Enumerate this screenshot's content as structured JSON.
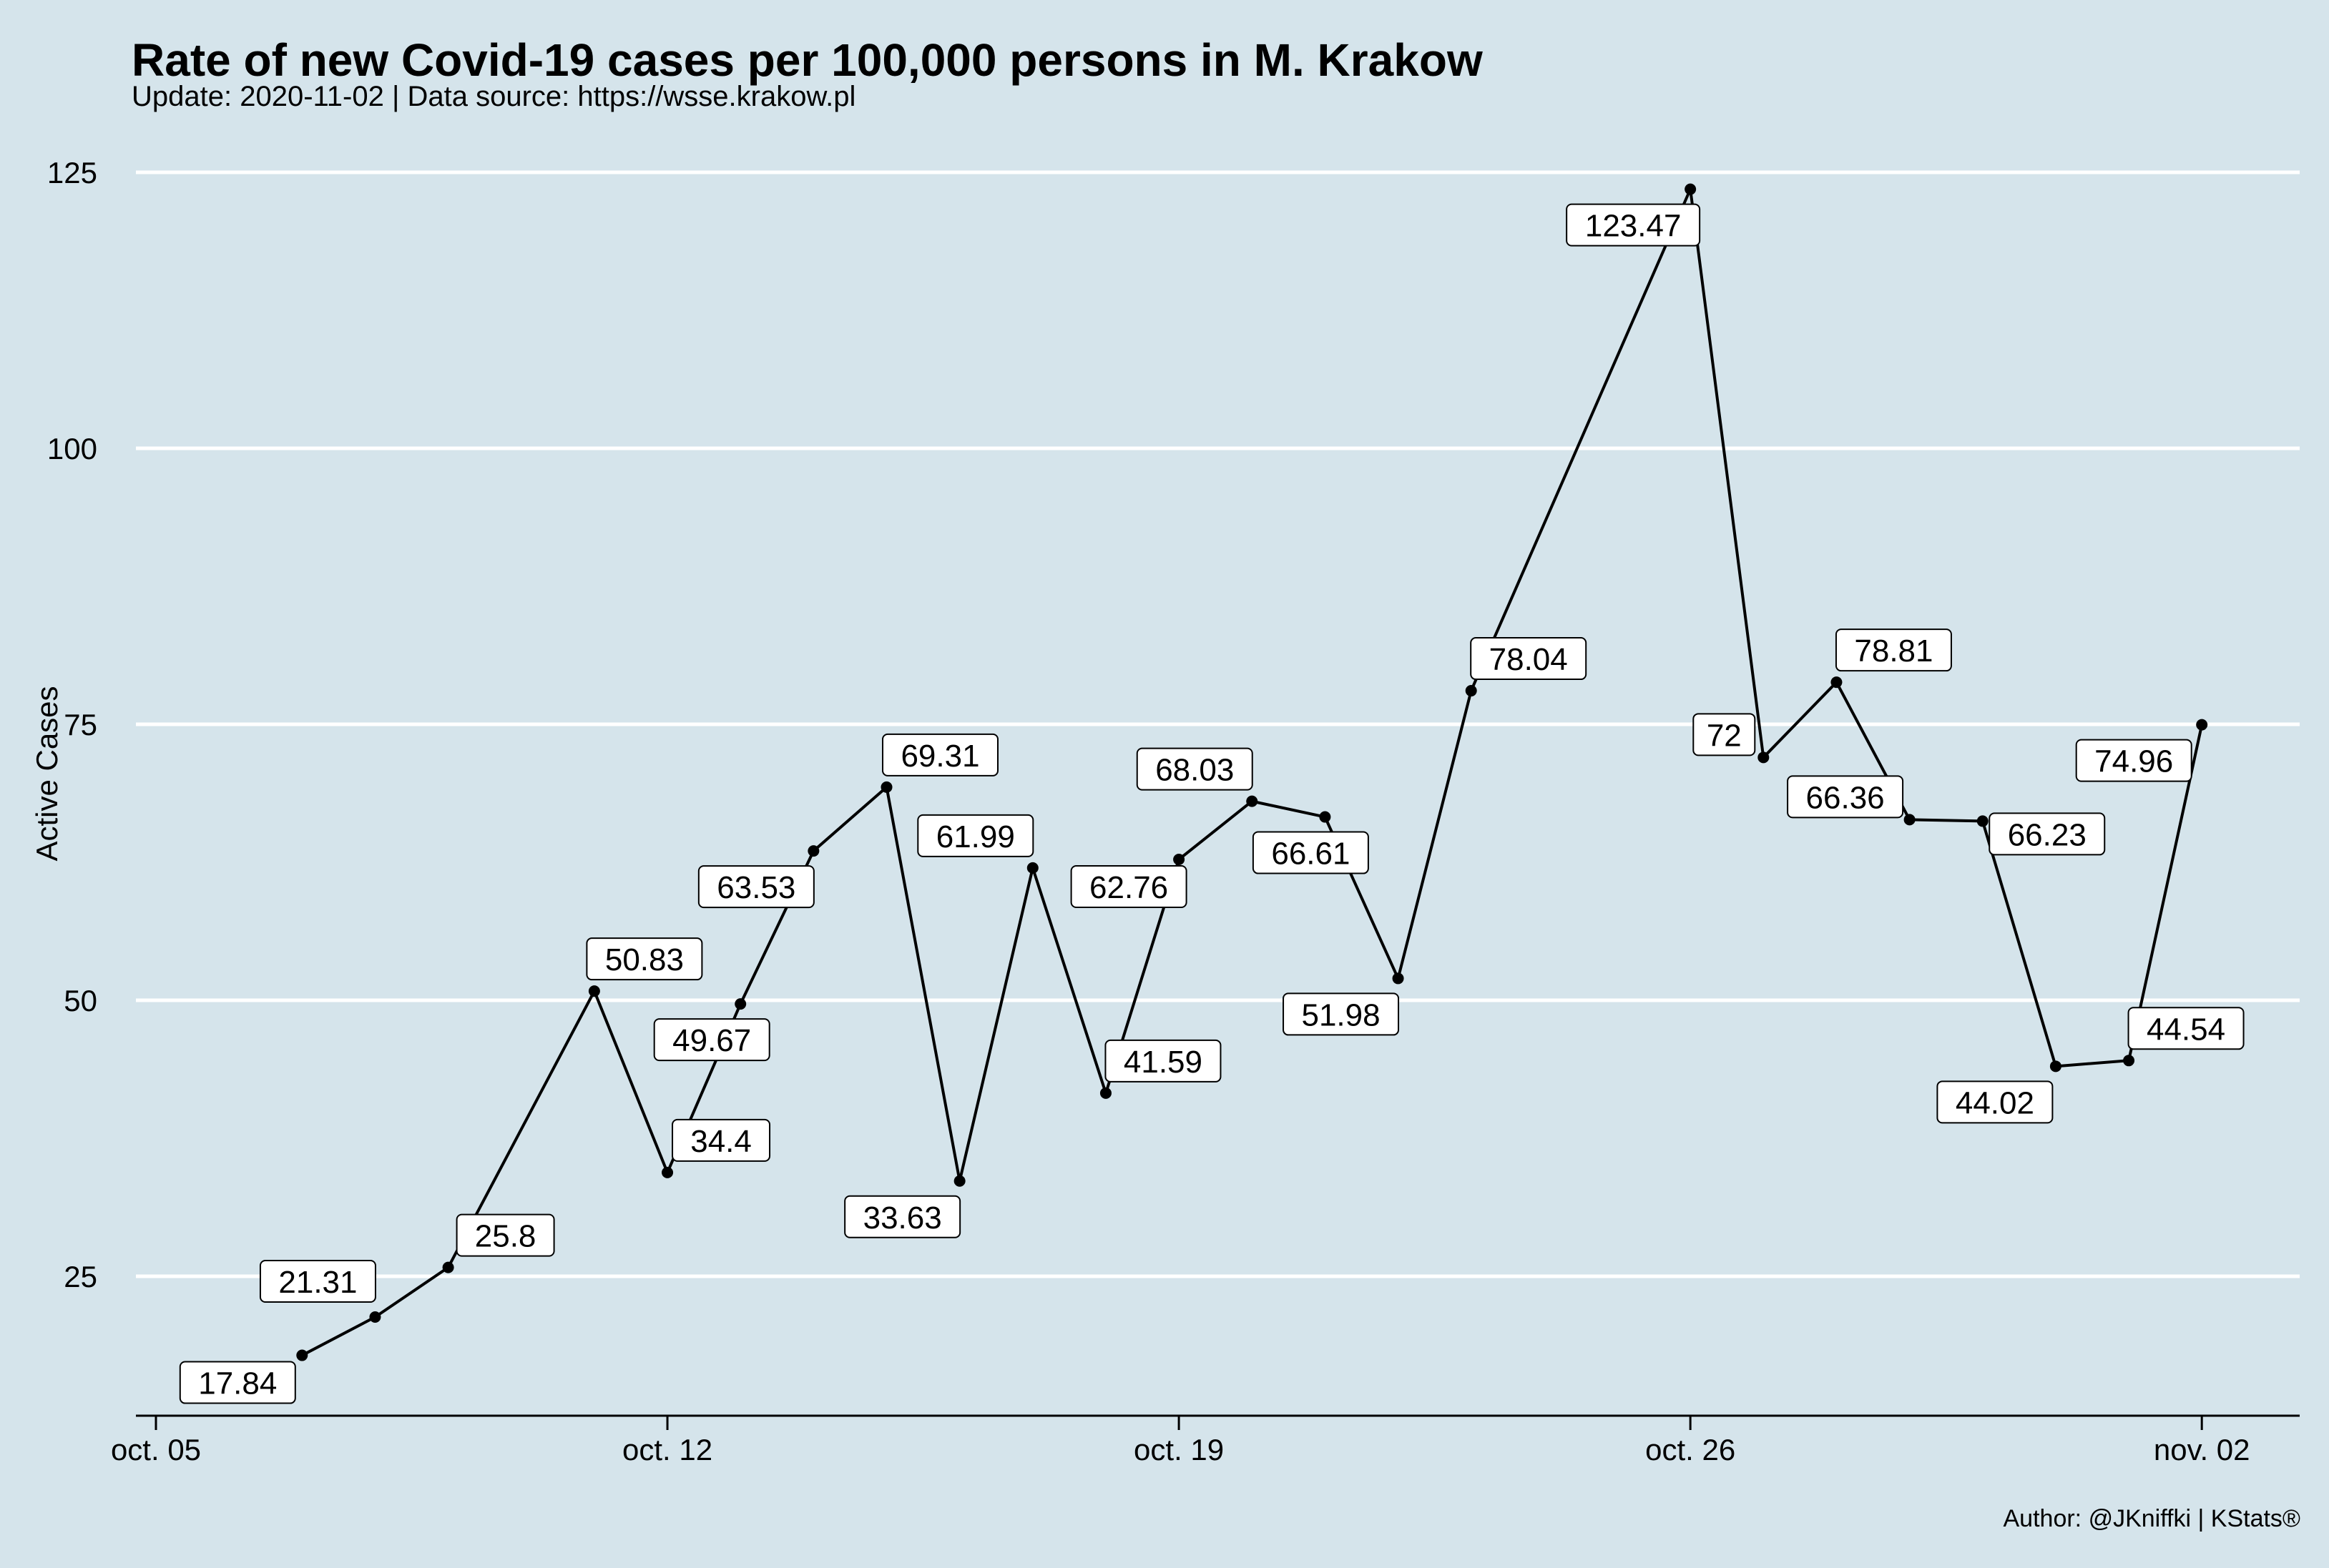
{
  "title": "Rate of new Covid-19 cases per 100,000 persons in M. Krakow",
  "subtitle": "Update: 2020-11-02 | Data source: https://wsse.krakow.pl",
  "caption": "Author: @JKniffki | KStats®",
  "chart_data": {
    "type": "line",
    "xlabel": "",
    "ylabel": "Active Cases",
    "x_tick_labels": [
      "oct. 05",
      "oct. 12",
      "oct. 19",
      "oct. 26",
      "nov. 02"
    ],
    "y_ticks": [
      25,
      50,
      75,
      100,
      125
    ],
    "ylim": [
      13,
      126
    ],
    "grid": "horizontal major lines",
    "series": [
      {
        "x": [
          "2020-10-07",
          "2020-10-08",
          "2020-10-09",
          "2020-10-11",
          "2020-10-12",
          "2020-10-13",
          "2020-10-14",
          "2020-10-15",
          "2020-10-16",
          "2020-10-17",
          "2020-10-18",
          "2020-10-19",
          "2020-10-20",
          "2020-10-21",
          "2020-10-22",
          "2020-10-23",
          "2020-10-26",
          "2020-10-27",
          "2020-10-28",
          "2020-10-29",
          "2020-10-30",
          "2020-10-31",
          "2020-11-01",
          "2020-11-02"
        ],
        "values": [
          17.84,
          21.31,
          25.8,
          50.83,
          34.4,
          49.67,
          63.53,
          69.31,
          33.63,
          61.99,
          41.59,
          62.76,
          68.03,
          66.61,
          51.98,
          78.04,
          123.47,
          72,
          78.81,
          66.36,
          66.23,
          44.02,
          44.54,
          74.96
        ],
        "labels": [
          "17.84",
          "21.31",
          "25.8",
          "50.83",
          "34.4",
          "49.67",
          "63.53",
          "69.31",
          "33.63",
          "61.99",
          "41.59",
          "62.76",
          "68.03",
          "66.61",
          "51.98",
          "78.04",
          "123.47",
          "72",
          "78.81",
          "66.36",
          "66.23",
          "44.02",
          "44.54",
          "74.96"
        ]
      }
    ],
    "line_color": "#000000",
    "background_color": "#d5e4eb",
    "label_background": "#ffffff"
  }
}
